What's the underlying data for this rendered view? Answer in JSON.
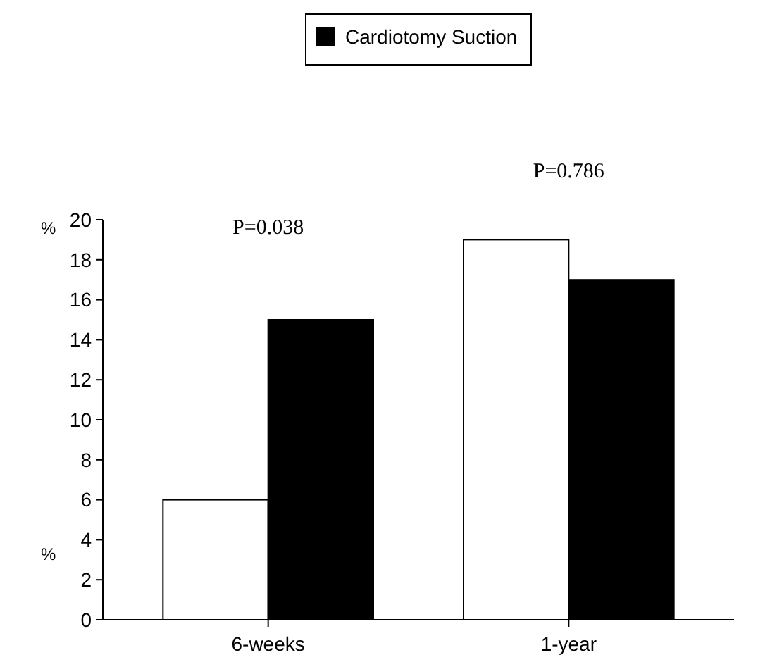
{
  "chart_data": {
    "type": "bar",
    "categories": [
      "6-weeks",
      "1-year"
    ],
    "ylabel": "%",
    "ylim": [
      0,
      20
    ],
    "yticks": [
      0,
      2,
      4,
      6,
      8,
      10,
      12,
      14,
      16,
      18,
      20
    ],
    "series": [
      {
        "color": "#ffffff",
        "values": [
          6,
          19
        ]
      },
      {
        "name": "Cardiotomy Suction",
        "color": "#000000",
        "values": [
          15,
          17
        ]
      }
    ],
    "annotations": [
      "P=0.038",
      "P=0.786"
    ],
    "legend": "top",
    "grid": false
  }
}
